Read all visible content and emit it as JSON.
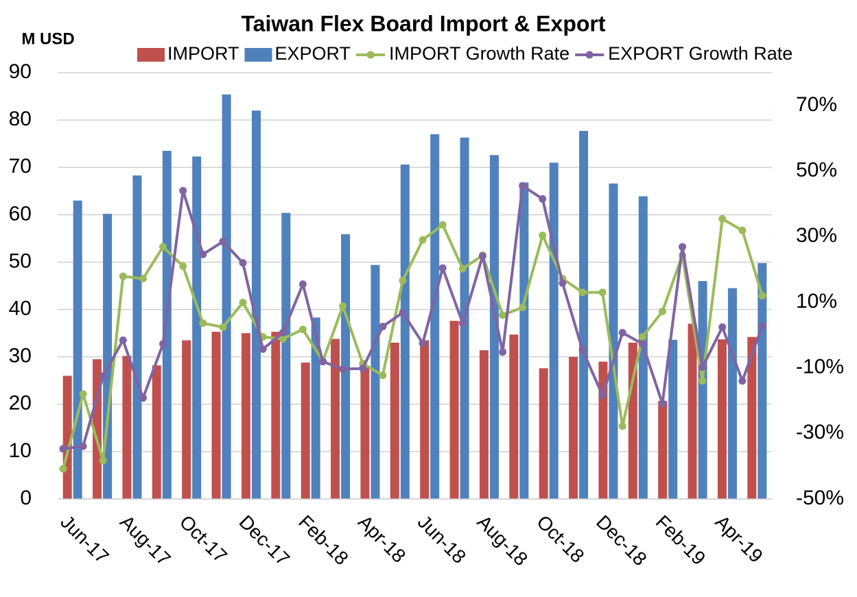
{
  "chart_data": [
    {
      "type": "bar",
      "title": "Taiwan Flex Board Import & Export",
      "y_label": "M USD",
      "categories": [
        "Jun-17",
        null,
        "Aug-17",
        null,
        "Oct-17",
        null,
        "Dec-17",
        null,
        "Feb-18",
        null,
        "Apr-18",
        null,
        "Jun-18",
        null,
        "Aug-18",
        null,
        "Oct-18",
        null,
        "Dec-18",
        null,
        "Feb-19",
        null,
        "Apr-19",
        null
      ],
      "series": [
        {
          "name": "IMPORT",
          "color": "#c0504d",
          "values": [
            26,
            29.5,
            30.2,
            28.2,
            33.5,
            35.3,
            35,
            35.3,
            28.8,
            33.8,
            28,
            33,
            33.5,
            37.6,
            31.4,
            34.7,
            27.6,
            30,
            29,
            33,
            20.7,
            37,
            33.7,
            34.2
          ]
        },
        {
          "name": "EXPORT",
          "color": "#4f81bd",
          "values": [
            63,
            60.2,
            68.3,
            73.5,
            72.3,
            85.4,
            82,
            60.4,
            38.3,
            55.9,
            49.4,
            70.6,
            77,
            76.3,
            72.6,
            66.8,
            71,
            77.7,
            66.6,
            63.9,
            33.6,
            46,
            44.5,
            49.8
          ]
        }
      ],
      "ylim": [
        0,
        90
      ],
      "yticks": [
        0,
        10,
        20,
        30,
        40,
        50,
        60,
        70,
        80,
        90
      ],
      "grid": true
    },
    {
      "type": "line",
      "categories": [
        null,
        null,
        null,
        null,
        null,
        null,
        null,
        null,
        null,
        null,
        null,
        null,
        null,
        null,
        null,
        null,
        null,
        null,
        null,
        null,
        null,
        null,
        null,
        null,
        null,
        null,
        null,
        null,
        null,
        null,
        null,
        null,
        null,
        null,
        null,
        null
      ],
      "series": [
        {
          "name": "IMPORT Growth Rate",
          "color": "#9bbb59",
          "values": [
            -40.8,
            -18.0,
            -38.3,
            17.9,
            17.2,
            26.9,
            21.0,
            3.6,
            2.4,
            9.9,
            -0.6,
            -1.2,
            1.7,
            -7.9,
            8.8,
            -8.7,
            -12.3,
            16.6,
            29.0,
            33.6,
            20.2,
            24.3,
            6.1,
            8.4,
            30.4,
            17.2,
            13.0,
            13.0,
            -27.8,
            -0.6,
            7.2,
            24.3,
            -14.0,
            35.4,
            31.9,
            12.0
          ]
        },
        {
          "name": "EXPORT Growth Rate",
          "color": "#8064a2",
          "values": [
            -34.7,
            -33.9,
            -12.5,
            -1.6,
            -19.2,
            -2.7,
            44.0,
            24.6,
            28.5,
            22.0,
            -4.3,
            0.7,
            15.5,
            -8.1,
            -10.4,
            -10.2,
            2.6,
            6.8,
            -2.5,
            20.4,
            3.6,
            24.1,
            -5.2,
            45.5,
            41.5,
            15.8,
            -4.6,
            -18.4,
            0.7,
            -2.7,
            -20.9,
            26.9,
            -9.8,
            2.4,
            -14.0,
            2.8
          ]
        }
      ],
      "ylim": [
        -50,
        80
      ],
      "yticks": [
        {
          "value": -50,
          "label": "-50%"
        },
        {
          "value": -30,
          "label": "-30%"
        },
        {
          "value": -10,
          "label": "-10%"
        },
        {
          "value": 10,
          "label": "10%"
        },
        {
          "value": 30,
          "label": "30%"
        },
        {
          "value": 50,
          "label": "50%"
        },
        {
          "value": 70,
          "label": "70%"
        }
      ]
    }
  ]
}
